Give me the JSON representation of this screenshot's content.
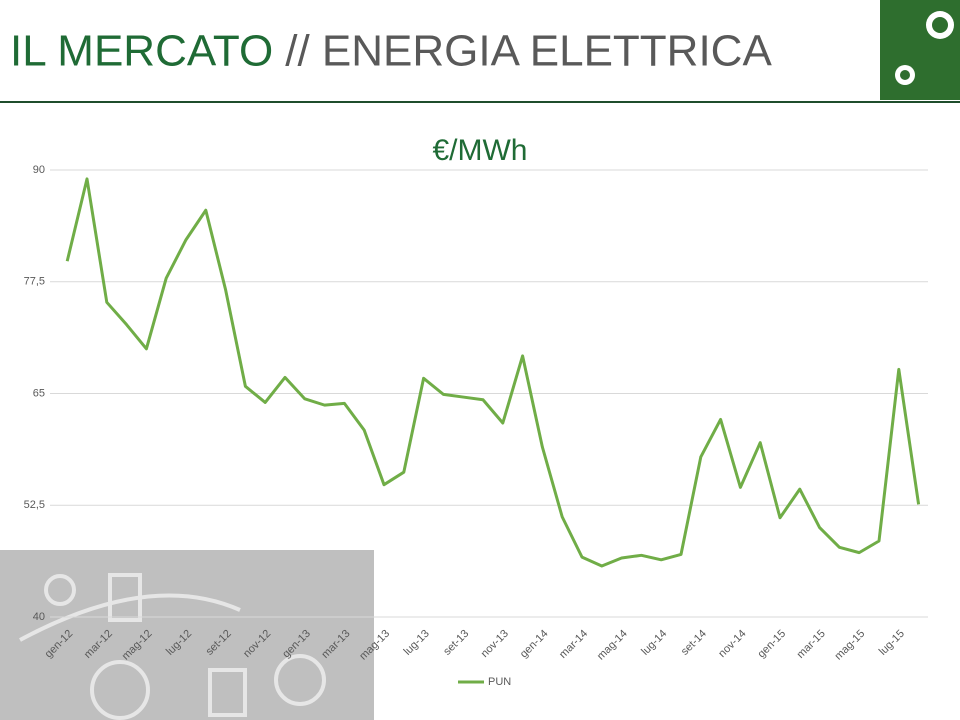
{
  "header": {
    "title_main": "IL MERCATO",
    "title_rest": "// ENERGIA ELETTRICA"
  },
  "chart_data": {
    "type": "line",
    "title": "€/MWh",
    "categories": [
      "gen-12",
      null,
      "mar-12",
      null,
      "mag-12",
      null,
      "lug-12",
      null,
      "set-12",
      null,
      "nov-12",
      null,
      "gen-13",
      null,
      "mar-13",
      null,
      "mag-13",
      null,
      "lug-13",
      null,
      "set-13",
      null,
      "nov-13",
      null,
      "gen-14",
      null,
      "mar-14",
      null,
      "mag-14",
      null,
      "lug-14",
      null,
      "set-14",
      null,
      "nov-14",
      null,
      "gen-15",
      null,
      "mar-15",
      null,
      "mag-15",
      null,
      "lug-15",
      null
    ],
    "series": [
      {
        "name": "PUN",
        "color": "#70ad47",
        "values": [
          79.8,
          89.0,
          75.2,
          72.7,
          70.0,
          77.9,
          82.2,
          85.5,
          76.6,
          65.8,
          64.0,
          66.8,
          64.4,
          63.7,
          63.9,
          60.9,
          54.8,
          56.2,
          66.7,
          64.9,
          64.6,
          64.3,
          61.7,
          69.2,
          59.0,
          51.2,
          46.7,
          45.7,
          46.6,
          46.9,
          46.4,
          47.0,
          57.9,
          62.1,
          54.5,
          59.5,
          51.1,
          54.3,
          50.0,
          47.8,
          47.2,
          48.5,
          67.7,
          52.6
        ]
      }
    ],
    "ylim": [
      40,
      90
    ],
    "yticks": [
      40,
      {
        "value": 52.5,
        "label": "52,5"
      },
      65,
      {
        "value": 77.5,
        "label": "77,5"
      },
      90
    ],
    "grid": true,
    "legend": "bottom"
  }
}
